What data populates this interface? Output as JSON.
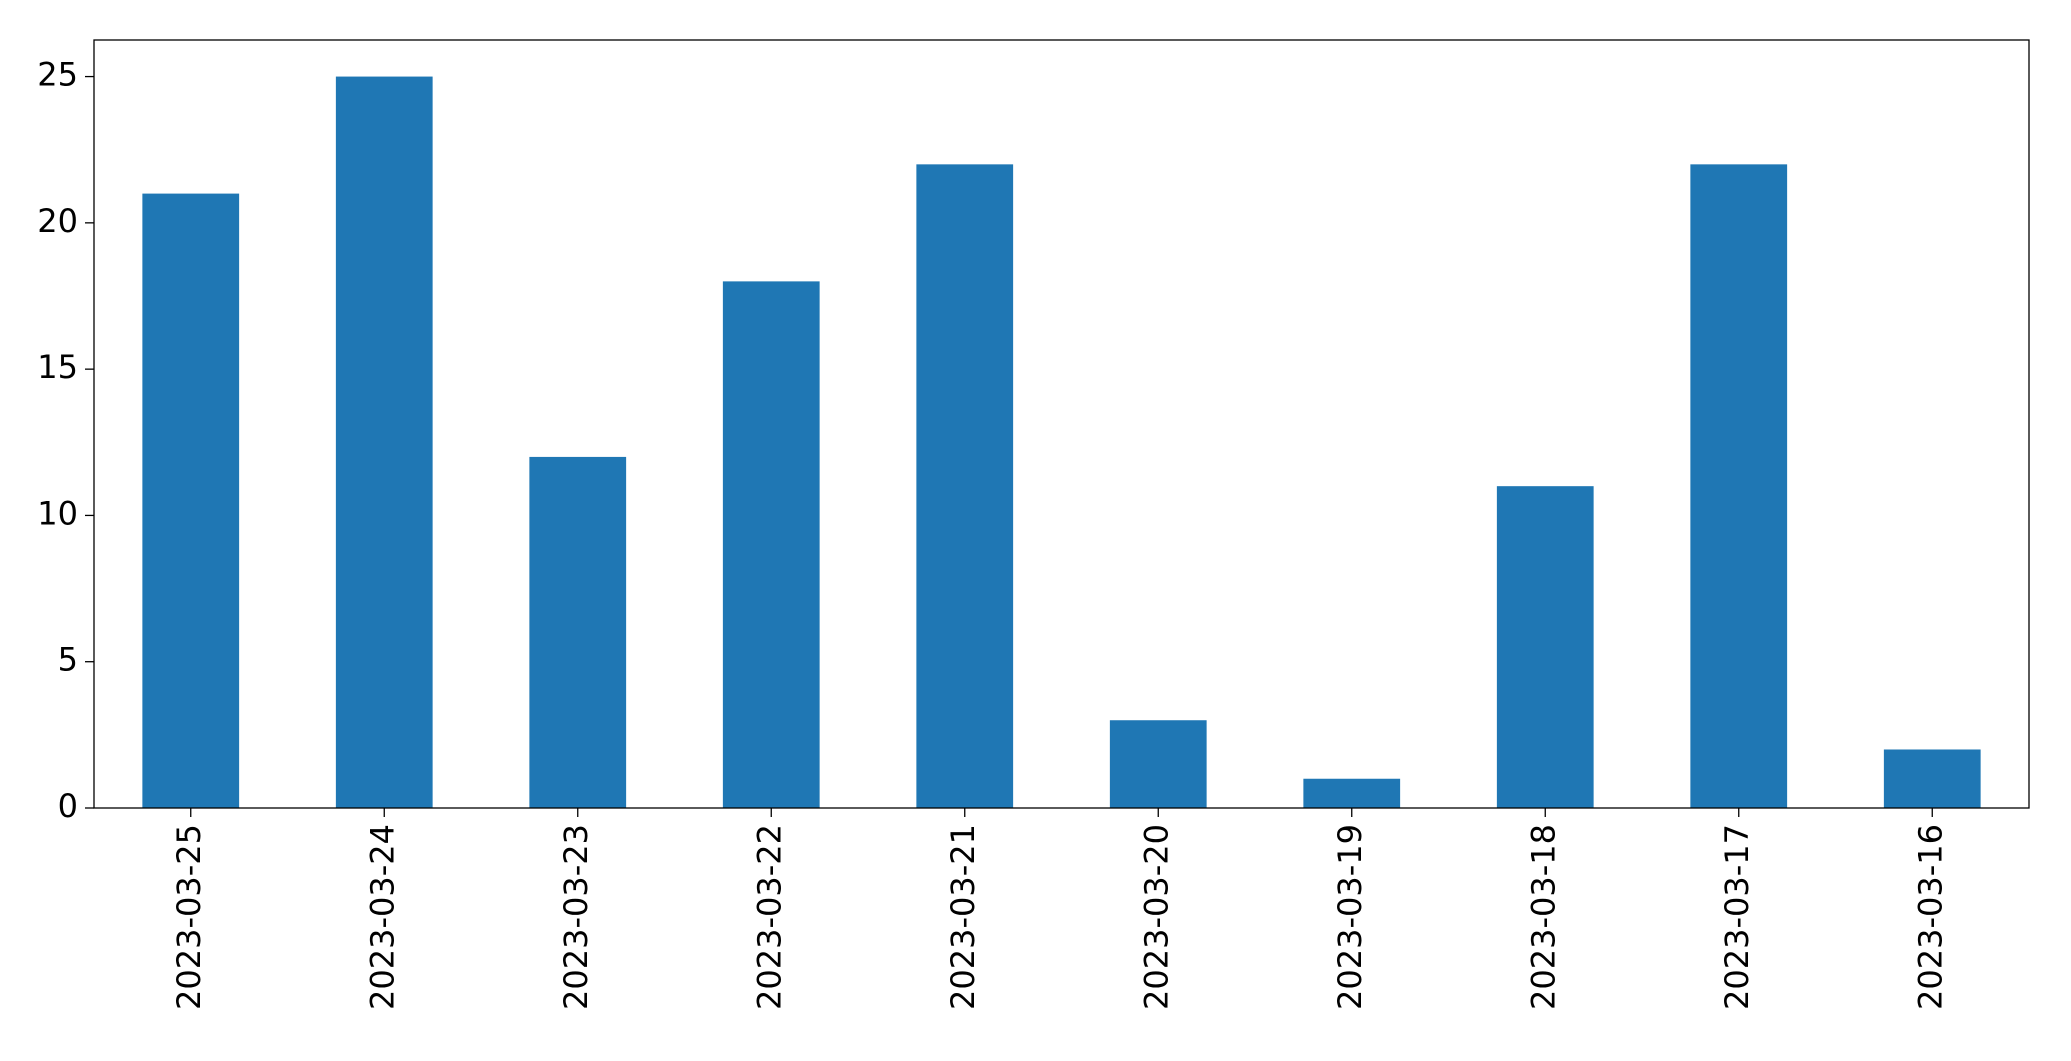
{
  "chart_data": {
    "type": "bar",
    "categories": [
      "2023-03-25",
      "2023-03-24",
      "2023-03-23",
      "2023-03-22",
      "2023-03-21",
      "2023-03-20",
      "2023-03-19",
      "2023-03-18",
      "2023-03-17",
      "2023-03-16"
    ],
    "values": [
      21,
      25,
      12,
      18,
      22,
      3,
      1,
      11,
      22,
      2
    ],
    "color": "#1f77b4",
    "ylim": [
      0,
      26.25
    ],
    "yticks": [
      0,
      5,
      10,
      15,
      20,
      25
    ],
    "grid": false
  }
}
